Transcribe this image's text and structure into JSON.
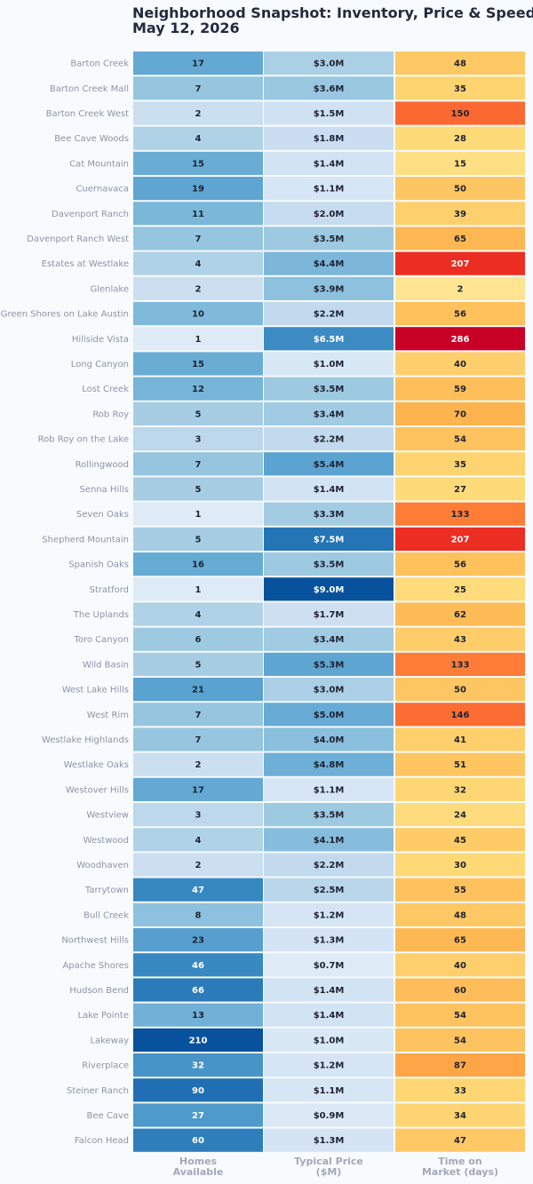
{
  "chart_data": {
    "type": "heatmap",
    "title": "Neighborhood Snapshot: Inventory, Price & Speed",
    "subtitle": "May 12, 2026",
    "columns": [
      {
        "key": "homes",
        "label_lines": [
          "Homes",
          "Available"
        ],
        "scale": "blues"
      },
      {
        "key": "price",
        "label_lines": [
          "Typical Price",
          "($M)"
        ],
        "scale": "blues",
        "format_prefix": "$",
        "format_suffix": "M",
        "decimals": 1
      },
      {
        "key": "dom",
        "label_lines": [
          "Time on",
          "Market (days)"
        ],
        "scale": "ylorrd"
      }
    ],
    "rows": [
      {
        "name": "Barton Creek",
        "homes": 17,
        "price": 3.0,
        "dom": 48
      },
      {
        "name": "Barton Creek Mall",
        "homes": 7,
        "price": 3.6,
        "dom": 35
      },
      {
        "name": "Barton Creek West",
        "homes": 2,
        "price": 1.5,
        "dom": 150
      },
      {
        "name": "Bee Cave Woods",
        "homes": 4,
        "price": 1.8,
        "dom": 28
      },
      {
        "name": "Cat Mountain",
        "homes": 15,
        "price": 1.4,
        "dom": 15
      },
      {
        "name": "Cuernavaca",
        "homes": 19,
        "price": 1.1,
        "dom": 50
      },
      {
        "name": "Davenport Ranch",
        "homes": 11,
        "price": 2.0,
        "dom": 39
      },
      {
        "name": "Davenport Ranch West",
        "homes": 7,
        "price": 3.5,
        "dom": 65
      },
      {
        "name": "Estates at Westlake",
        "homes": 4,
        "price": 4.4,
        "dom": 207
      },
      {
        "name": "Glenlake",
        "homes": 2,
        "price": 3.9,
        "dom": 2
      },
      {
        "name": "Green Shores on Lake Austin",
        "homes": 10,
        "price": 2.2,
        "dom": 56
      },
      {
        "name": "Hillside Vista",
        "homes": 1,
        "price": 6.5,
        "dom": 286
      },
      {
        "name": "Long Canyon",
        "homes": 15,
        "price": 1.0,
        "dom": 40
      },
      {
        "name": "Lost Creek",
        "homes": 12,
        "price": 3.5,
        "dom": 59
      },
      {
        "name": "Rob Roy",
        "homes": 5,
        "price": 3.4,
        "dom": 70
      },
      {
        "name": "Rob Roy on the Lake",
        "homes": 3,
        "price": 2.2,
        "dom": 54
      },
      {
        "name": "Rollingwood",
        "homes": 7,
        "price": 5.4,
        "dom": 35
      },
      {
        "name": "Senna Hills",
        "homes": 5,
        "price": 1.4,
        "dom": 27
      },
      {
        "name": "Seven Oaks",
        "homes": 1,
        "price": 3.3,
        "dom": 133
      },
      {
        "name": "Shepherd Mountain",
        "homes": 5,
        "price": 7.5,
        "dom": 207
      },
      {
        "name": "Spanish Oaks",
        "homes": 16,
        "price": 3.5,
        "dom": 56
      },
      {
        "name": "Stratford",
        "homes": 1,
        "price": 9.0,
        "dom": 25
      },
      {
        "name": "The Uplands",
        "homes": 4,
        "price": 1.7,
        "dom": 62
      },
      {
        "name": "Toro Canyon",
        "homes": 6,
        "price": 3.4,
        "dom": 43
      },
      {
        "name": "Wild Basin",
        "homes": 5,
        "price": 5.3,
        "dom": 133
      },
      {
        "name": "West Lake Hills",
        "homes": 21,
        "price": 3.0,
        "dom": 50
      },
      {
        "name": "West Rim",
        "homes": 7,
        "price": 5.0,
        "dom": 146
      },
      {
        "name": "Westlake Highlands",
        "homes": 7,
        "price": 4.0,
        "dom": 41
      },
      {
        "name": "Westlake Oaks",
        "homes": 2,
        "price": 4.8,
        "dom": 51
      },
      {
        "name": "Westover Hills",
        "homes": 17,
        "price": 1.1,
        "dom": 32
      },
      {
        "name": "Westview",
        "homes": 3,
        "price": 3.5,
        "dom": 24
      },
      {
        "name": "Westwood",
        "homes": 4,
        "price": 4.1,
        "dom": 45
      },
      {
        "name": "Woodhaven",
        "homes": 2,
        "price": 2.2,
        "dom": 30
      },
      {
        "name": "Tarrytown",
        "homes": 47,
        "price": 2.5,
        "dom": 55
      },
      {
        "name": "Bull Creek",
        "homes": 8,
        "price": 1.2,
        "dom": 48
      },
      {
        "name": "Northwest Hills",
        "homes": 23,
        "price": 1.3,
        "dom": 65
      },
      {
        "name": "Apache Shores",
        "homes": 46,
        "price": 0.7,
        "dom": 40
      },
      {
        "name": "Hudson Bend",
        "homes": 66,
        "price": 1.4,
        "dom": 60
      },
      {
        "name": "Lake Pointe",
        "homes": 13,
        "price": 1.4,
        "dom": 54
      },
      {
        "name": "Lakeway",
        "homes": 210,
        "price": 1.0,
        "dom": 54
      },
      {
        "name": "Riverplace",
        "homes": 32,
        "price": 1.2,
        "dom": 87
      },
      {
        "name": "Steiner Ranch",
        "homes": 90,
        "price": 1.1,
        "dom": 33
      },
      {
        "name": "Bee Cave",
        "homes": 27,
        "price": 0.9,
        "dom": 34
      },
      {
        "name": "Falcon Head",
        "homes": 60,
        "price": 1.3,
        "dom": 47
      }
    ],
    "grid": false,
    "legend": "none"
  }
}
